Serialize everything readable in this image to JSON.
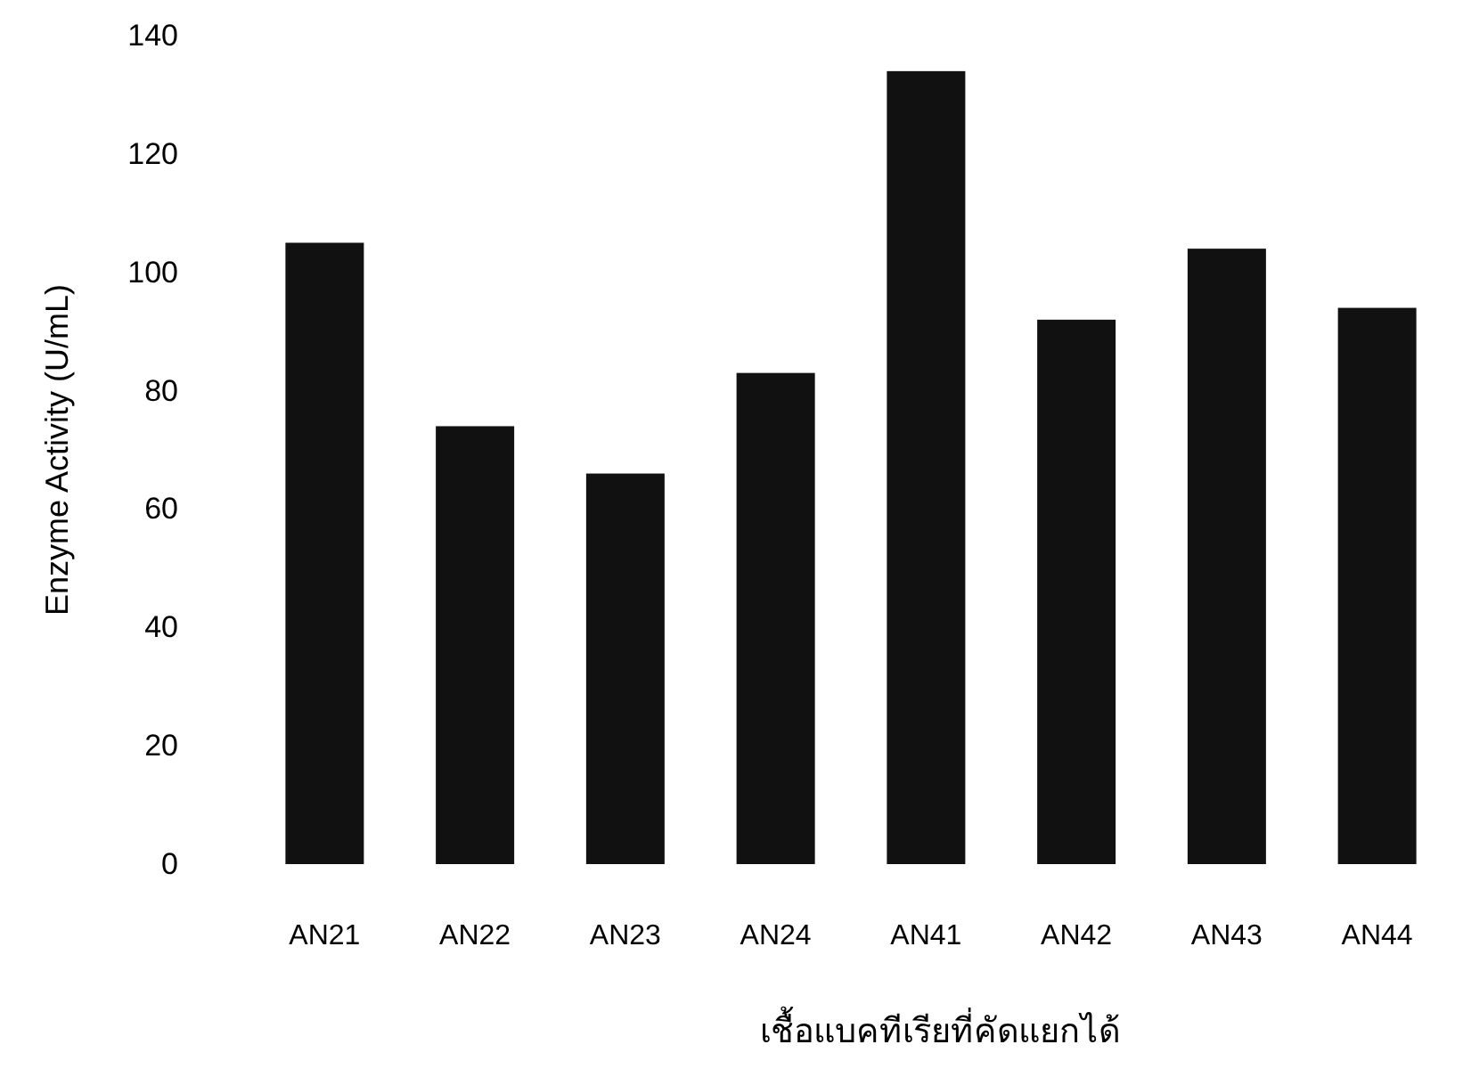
{
  "chart_data": {
    "type": "bar",
    "xlabel": "เชื้อแบคทีเรียที่คัดแยกได้",
    "ylabel": "Enzyme Activity (U/mL)",
    "categories": [
      "AN21",
      "AN22",
      "AN23",
      "AN24",
      "AN41",
      "AN42",
      "AN43",
      "AN44"
    ],
    "values": [
      105,
      74,
      66,
      83,
      134,
      92,
      104,
      94
    ],
    "color": "#111111",
    "ylim": [
      0,
      140
    ],
    "yticks": [
      0,
      20,
      40,
      60,
      80,
      100,
      120,
      140
    ],
    "grid": false
  }
}
